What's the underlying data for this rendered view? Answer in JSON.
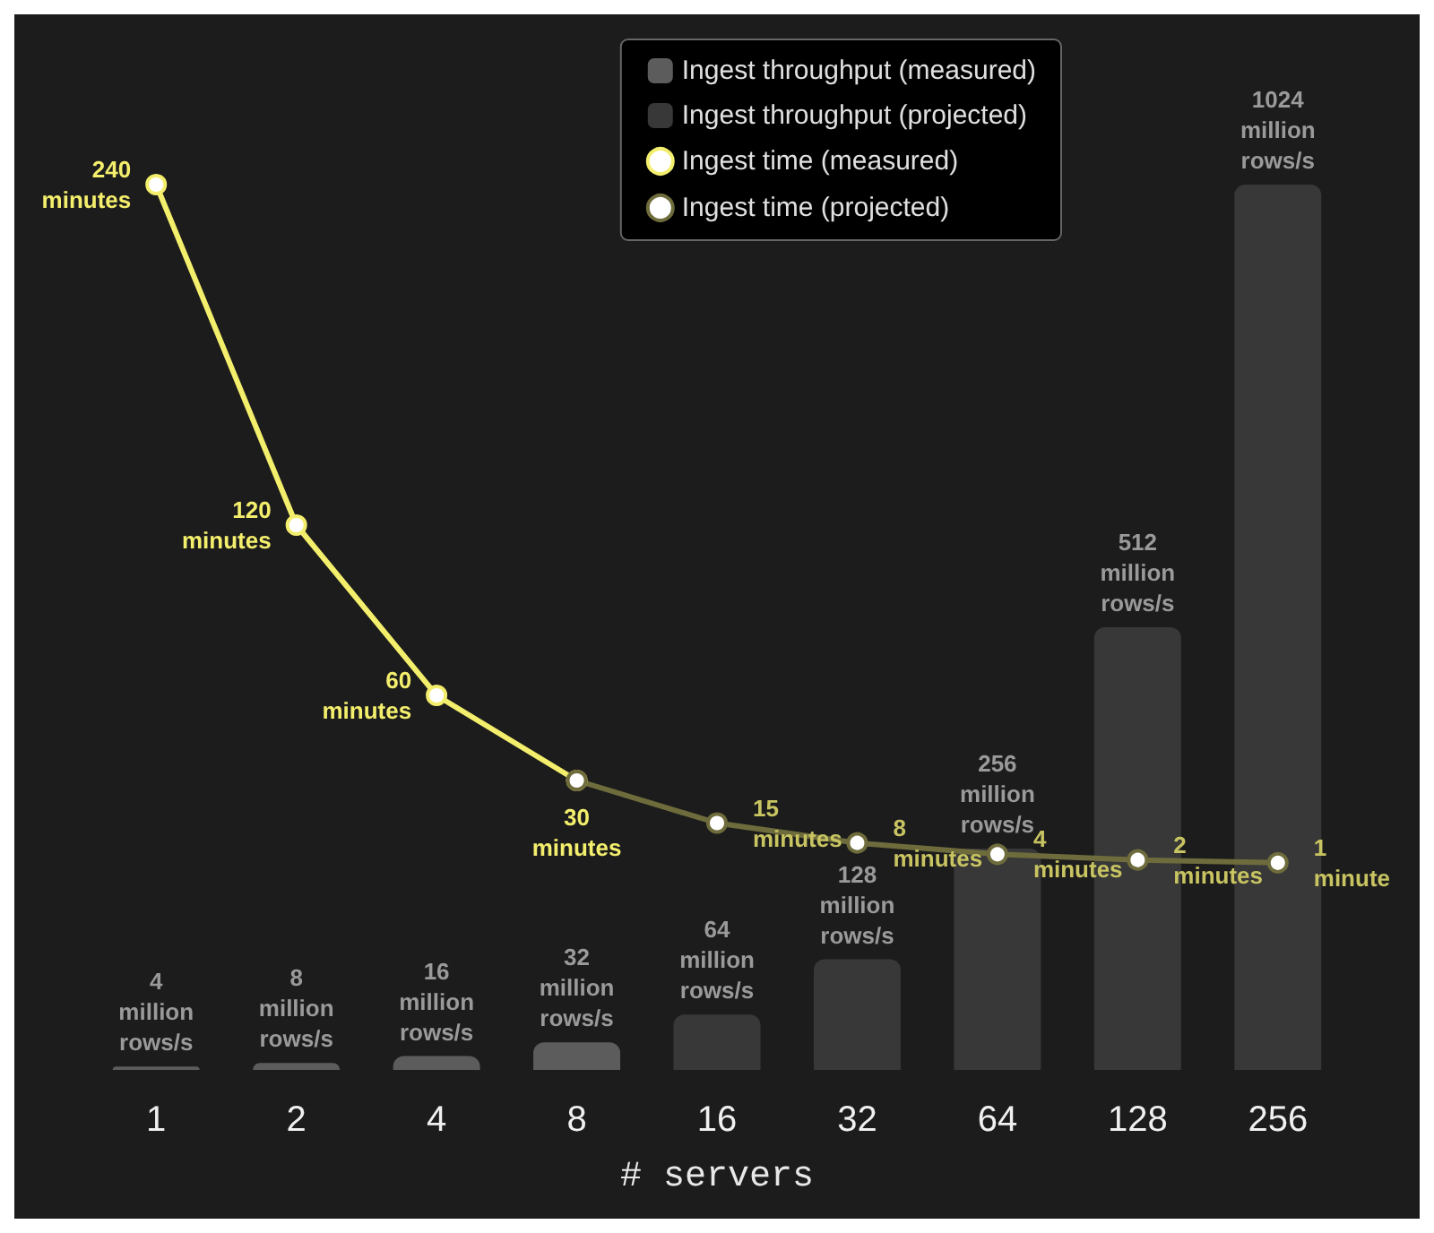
{
  "chart_data": {
    "type": "bar",
    "xlabel": "# servers",
    "categories": [
      "1",
      "2",
      "4",
      "8",
      "16",
      "32",
      "64",
      "128",
      "256"
    ],
    "series": [
      {
        "name": "Ingest throughput (measured)",
        "color": "#5c5c5c",
        "values": [
          4000000,
          8000000,
          16000000,
          32000000,
          null,
          null,
          null,
          null,
          null
        ],
        "value_labels": [
          "4\nmillion\nrows/s",
          "8\nmillion\nrows/s",
          "16\nmillion\nrows/s",
          "32\nmillion\nrows/s",
          null,
          null,
          null,
          null,
          null
        ]
      },
      {
        "name": "Ingest throughput (projected)",
        "color": "#383838",
        "values": [
          null,
          null,
          null,
          null,
          64000000,
          128000000,
          256000000,
          512000000,
          1024000000
        ],
        "value_labels": [
          null,
          null,
          null,
          null,
          "64\nmillion\nrows/s",
          "128\nmillion\nrows/s",
          "256\nmillion\nrows/s",
          "512\nmillion\nrows/s",
          "1024\nmillion\nrows/s"
        ]
      },
      {
        "name": "Ingest time (measured)",
        "type": "line",
        "axis": "y2",
        "color": "#f3ee6c",
        "values": [
          240,
          120,
          60,
          30,
          null,
          null,
          null,
          null,
          null
        ],
        "value_labels": [
          "240\nminutes",
          "120\nminutes",
          "60\nminutes",
          "30\nminutes",
          null,
          null,
          null,
          null,
          null
        ]
      },
      {
        "name": "Ingest time (projected)",
        "type": "line",
        "axis": "y2",
        "color": "#6e6c3c",
        "values": [
          null,
          null,
          null,
          30,
          15,
          8,
          4,
          2,
          1
        ],
        "value_labels": [
          null,
          null,
          null,
          null,
          "15\nminutes",
          "8\nminutes",
          "4\nminutes",
          "2\nminutes",
          "1\nminute"
        ]
      }
    ],
    "legend": "top right",
    "marker": "circle",
    "grid": false,
    "tick_labels": "x"
  }
}
